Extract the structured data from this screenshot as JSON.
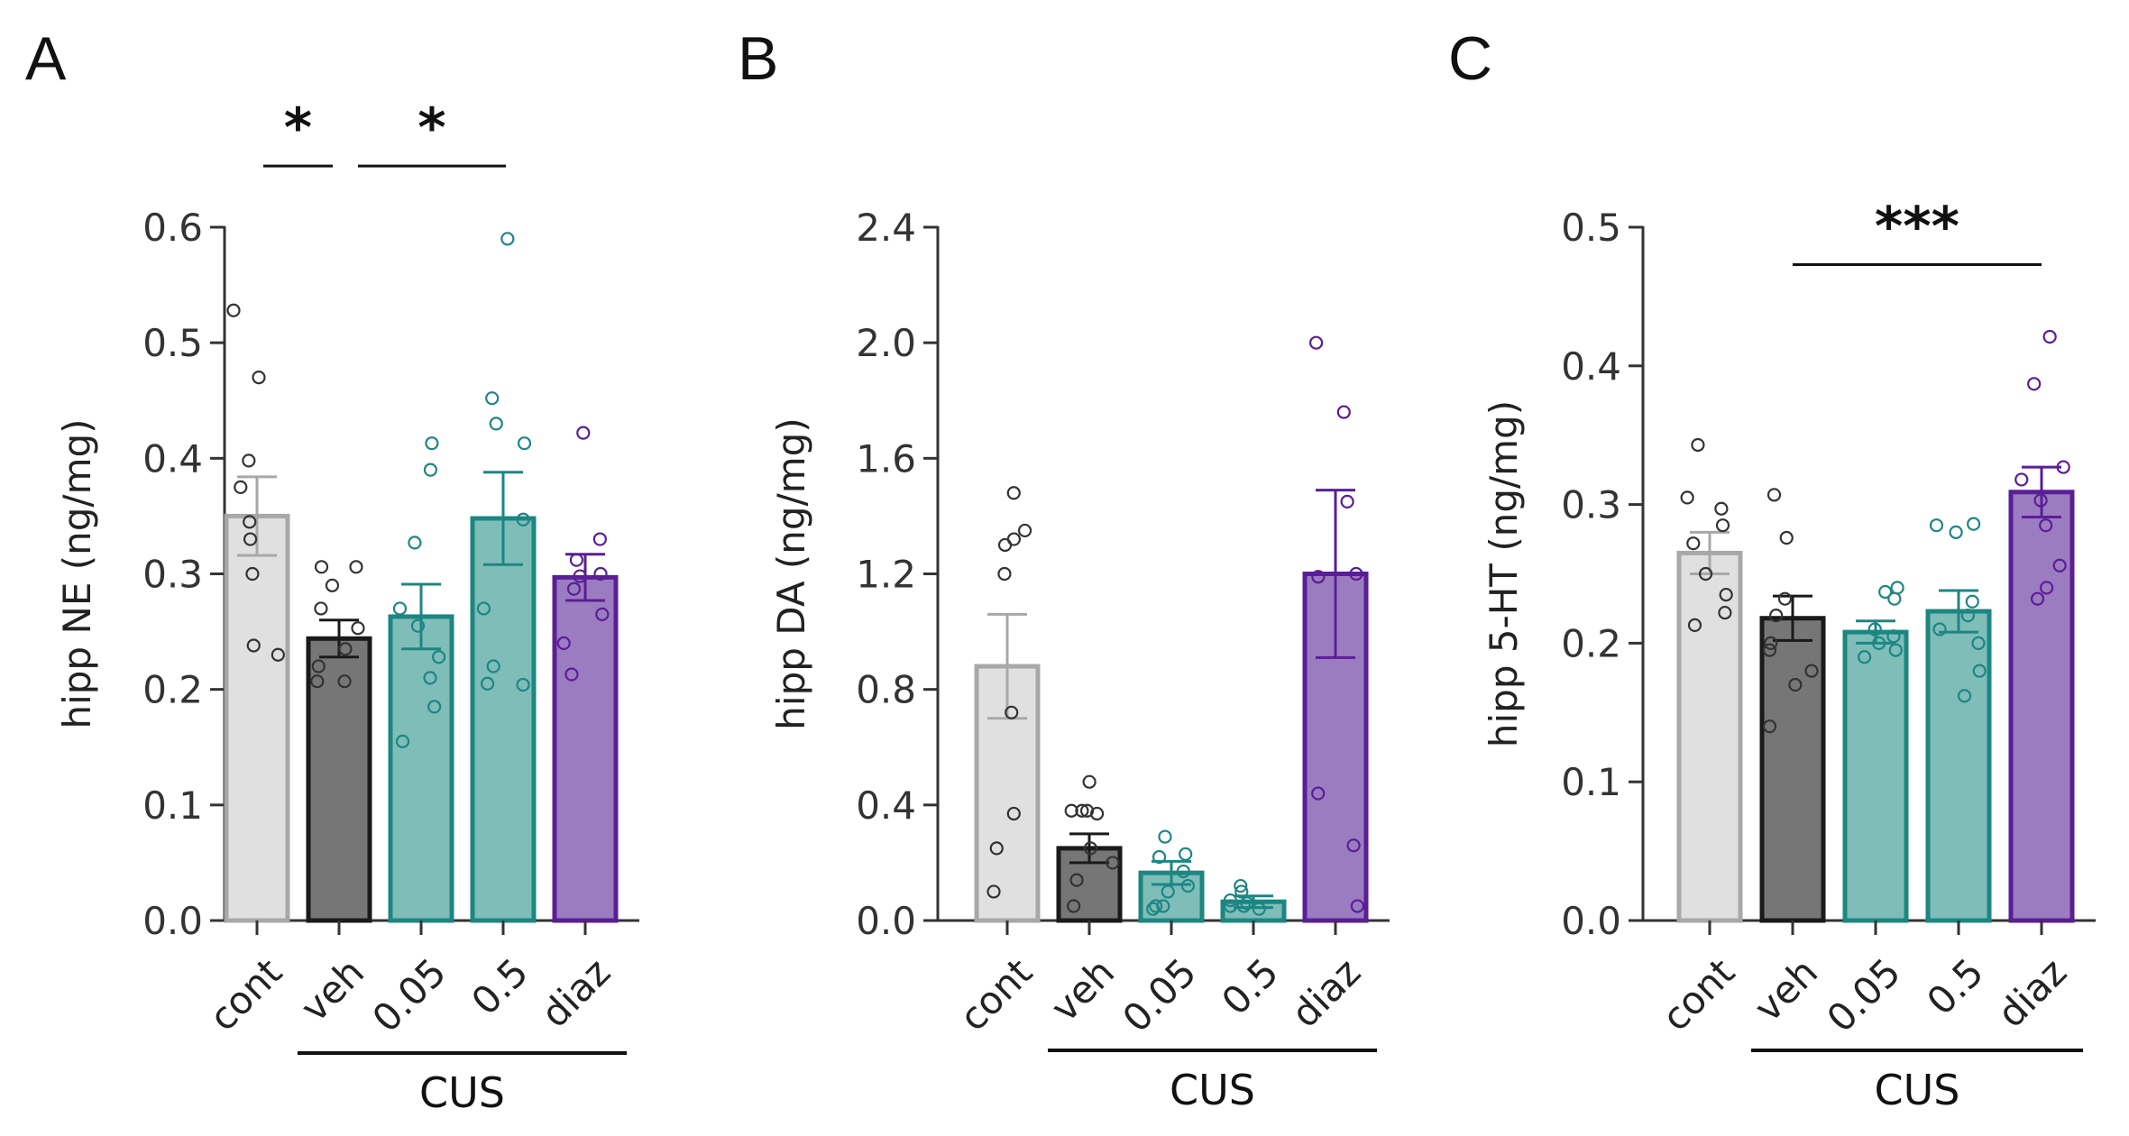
{
  "chart_data": [
    {
      "type": "bar",
      "panel": "A",
      "ylabel": "hipp NE (ng/mg)",
      "ylim": [
        0,
        0.6
      ],
      "yticks": [
        0.0,
        0.1,
        0.2,
        0.3,
        0.4,
        0.5,
        0.6
      ],
      "ytick_labels": [
        "0.0",
        "0.1",
        "0.2",
        "0.3",
        "0.4",
        "0.5",
        "0.6"
      ],
      "categories": [
        "cont",
        "veh",
        "0.05",
        "0.5",
        "diaz"
      ],
      "group_label": "CUS",
      "group_members": [
        1,
        4
      ],
      "values": [
        0.35,
        0.244,
        0.263,
        0.348,
        0.297
      ],
      "sem": [
        0.034,
        0.016,
        0.028,
        0.04,
        0.02
      ],
      "points": [
        [
          0.528,
          0.47,
          0.398,
          0.375,
          0.345,
          0.33,
          0.3,
          0.238,
          0.23
        ],
        [
          0.306,
          0.306,
          0.29,
          0.27,
          0.253,
          0.235,
          0.22,
          0.207,
          0.207
        ],
        [
          0.413,
          0.39,
          0.327,
          0.27,
          0.255,
          0.228,
          0.21,
          0.185,
          0.155
        ],
        [
          0.59,
          0.452,
          0.43,
          0.413,
          0.347,
          0.27,
          0.22,
          0.204,
          0.205
        ],
        [
          0.422,
          0.33,
          0.312,
          0.3,
          0.298,
          0.287,
          0.265,
          0.24,
          0.213
        ]
      ],
      "significance": [
        {
          "label": "*",
          "from": 0,
          "to": 1,
          "y": 0.653
        },
        {
          "label": "*",
          "from": 1,
          "to": 3,
          "y": 0.653
        }
      ]
    },
    {
      "type": "bar",
      "panel": "B",
      "ylabel": "hipp DA (ng/mg)",
      "ylim": [
        0,
        2.4
      ],
      "yticks": [
        0.0,
        0.4,
        0.8,
        1.2,
        1.6,
        2.0,
        2.4
      ],
      "ytick_labels": [
        "0.0",
        "0.4",
        "0.8",
        "1.2",
        "1.6",
        "2.0",
        "2.4"
      ],
      "categories": [
        "cont",
        "veh",
        "0.05",
        "0.5",
        "diaz"
      ],
      "group_label": "CUS",
      "group_members": [
        1,
        4
      ],
      "values": [
        0.88,
        0.25,
        0.165,
        0.065,
        1.2
      ],
      "sem": [
        0.18,
        0.05,
        0.04,
        0.02,
        0.29
      ],
      "points": [
        [
          1.48,
          1.35,
          1.32,
          1.3,
          1.2,
          0.72,
          0.37,
          0.25,
          0.1
        ],
        [
          0.48,
          0.38,
          0.38,
          0.38,
          0.37,
          0.25,
          0.2,
          0.14,
          0.05
        ],
        [
          0.29,
          0.23,
          0.22,
          0.17,
          0.12,
          0.1,
          0.05,
          0.05,
          0.04
        ],
        [
          0.12,
          0.1,
          0.07,
          0.06,
          0.05,
          0.05,
          0.04
        ],
        [
          2.0,
          1.76,
          1.45,
          1.2,
          1.19,
          0.44,
          0.26,
          0.05
        ]
      ],
      "significance": []
    },
    {
      "type": "bar",
      "panel": "C",
      "ylabel": "hipp 5-HT (ng/mg)",
      "ylim": [
        0,
        0.5
      ],
      "yticks": [
        0.0,
        0.1,
        0.2,
        0.3,
        0.4,
        0.5
      ],
      "ytick_labels": [
        "0.0",
        "0.1",
        "0.2",
        "0.3",
        "0.4",
        "0.5"
      ],
      "categories": [
        "cont",
        "veh",
        "0.05",
        "0.5",
        "diaz"
      ],
      "group_label": "CUS",
      "group_members": [
        1,
        4
      ],
      "values": [
        0.265,
        0.218,
        0.208,
        0.223,
        0.309
      ],
      "sem": [
        0.015,
        0.016,
        0.008,
        0.015,
        0.018
      ],
      "points": [
        [
          0.343,
          0.305,
          0.297,
          0.285,
          0.272,
          0.25,
          0.235,
          0.222,
          0.213
        ],
        [
          0.307,
          0.276,
          0.232,
          0.22,
          0.2,
          0.195,
          0.18,
          0.17,
          0.14
        ],
        [
          0.24,
          0.237,
          0.232,
          0.21,
          0.205,
          0.2,
          0.195,
          0.19
        ],
        [
          0.286,
          0.285,
          0.28,
          0.23,
          0.22,
          0.21,
          0.2,
          0.18,
          0.162
        ],
        [
          0.421,
          0.387,
          0.327,
          0.318,
          0.303,
          0.285,
          0.256,
          0.24,
          0.232
        ]
      ],
      "significance": [
        {
          "label": "***",
          "from": 1,
          "to": 4,
          "y": 0.473
        }
      ]
    }
  ],
  "colors": {
    "fills": [
      "#e0e0e0",
      "#767676",
      "#7fbdb9",
      "#7fbdb9",
      "#9c7cc0"
    ],
    "edges": [
      "#a8a8a8",
      "#1a1a1a",
      "#1d8682",
      "#1d8682",
      "#5a1e96"
    ],
    "axis": "#333333"
  }
}
